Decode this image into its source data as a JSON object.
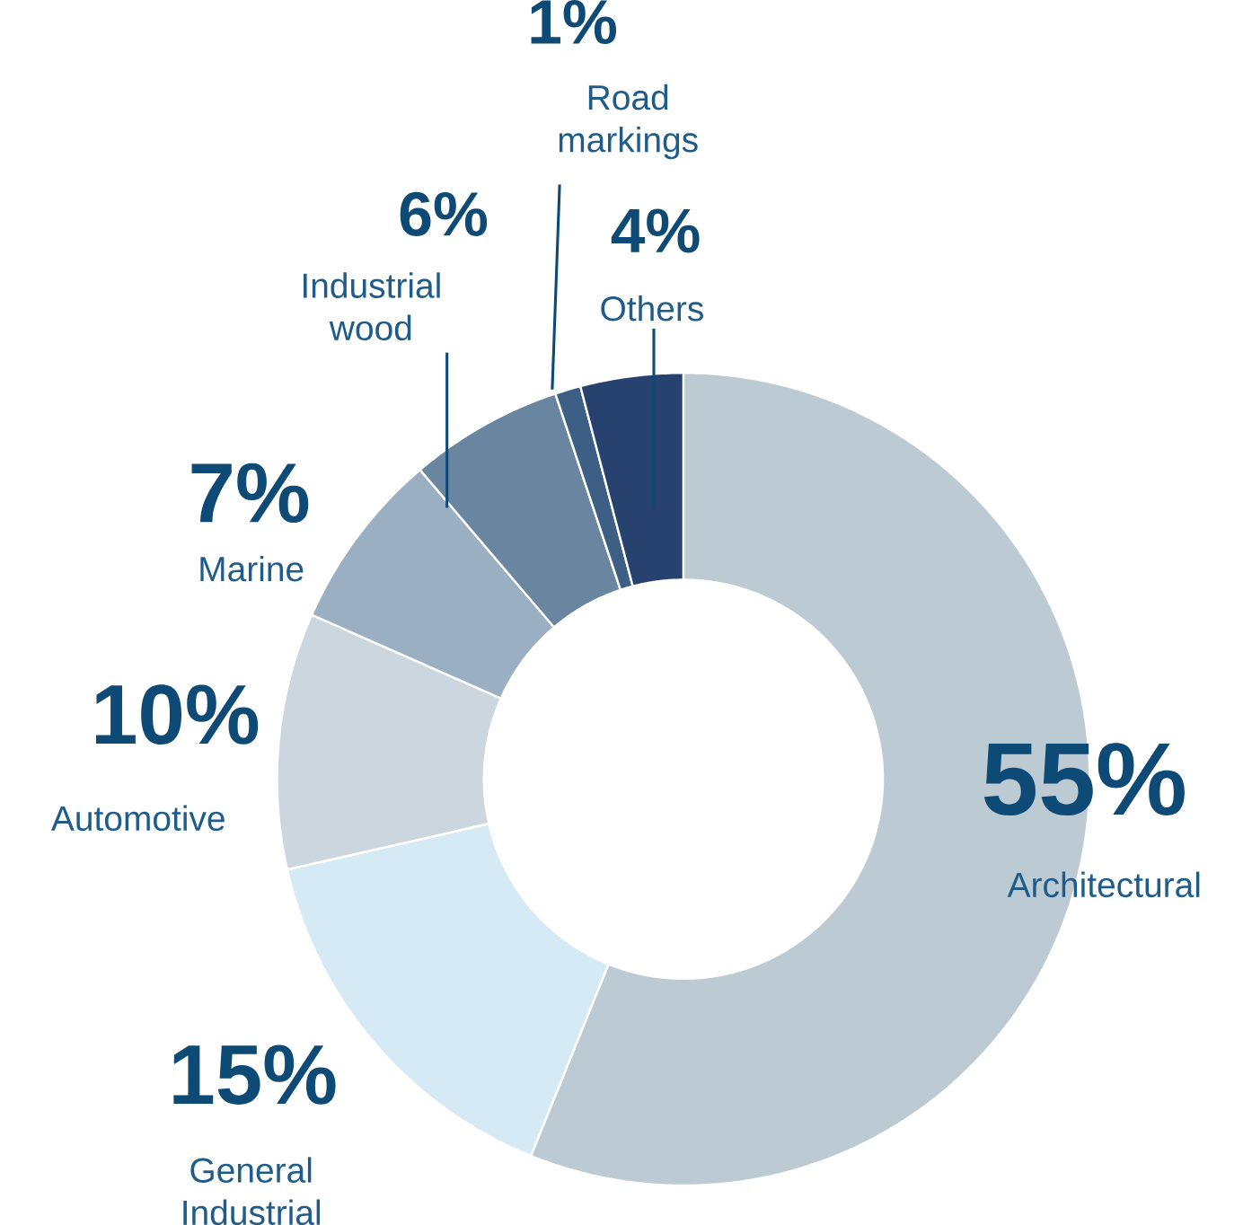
{
  "chart_data": {
    "type": "donut",
    "categories": [
      "Architectural",
      "General Industrial",
      "Automotive",
      "Marine",
      "Industrial wood",
      "Road markings",
      "Others"
    ],
    "values": [
      55,
      15,
      10,
      7,
      6,
      1,
      4
    ],
    "value_labels": [
      "55%",
      "15%",
      "10%",
      "7%",
      "6%",
      "1%",
      "4%"
    ],
    "colors": [
      "#bccad4",
      "#d6eaf5",
      "#ccd6de",
      "#9aafc2",
      "#6a85a0",
      "#3d5f85",
      "#27426f"
    ]
  }
}
